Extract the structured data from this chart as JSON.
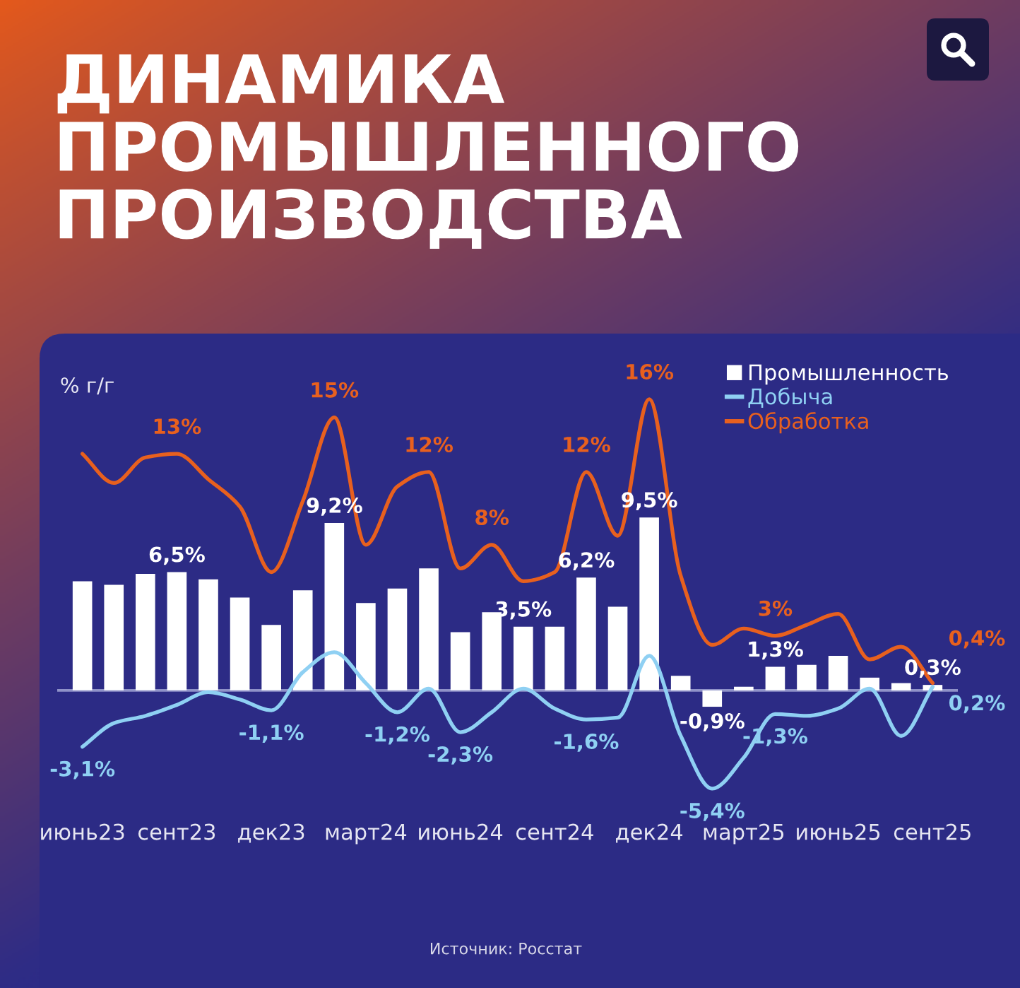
{
  "chart_data": {
    "type": "bar",
    "title": "ДИНАМИКА ПРОМЫШЛЕННОГО ПРОИЗВОДСТВА",
    "ylabel": "% г/г",
    "categories": [
      "июнь23",
      null,
      null,
      "сент23",
      null,
      null,
      "дек23",
      null,
      null,
      "март24",
      null,
      null,
      "июнь24",
      null,
      null,
      "сент24",
      null,
      null,
      "дек24",
      null,
      null,
      "март25",
      null,
      null,
      "июнь25",
      null,
      null,
      "сент25"
    ],
    "series": [
      {
        "name": "Промышленность",
        "color": "#ffffff",
        "values": [
          6.0,
          5.8,
          6.4,
          6.5,
          6.1,
          5.1,
          3.6,
          5.5,
          9.2,
          4.8,
          5.6,
          6.7,
          3.2,
          4.3,
          3.5,
          3.5,
          6.2,
          4.6,
          9.5,
          0.8,
          -0.9,
          0.2,
          1.3,
          1.4,
          1.9,
          0.7,
          0.4,
          0.3
        ],
        "value_labels": [
          null,
          null,
          null,
          "6,5%",
          null,
          null,
          null,
          null,
          "9,2%",
          null,
          null,
          null,
          null,
          null,
          "3,5%",
          null,
          "6,2%",
          null,
          "9,5%",
          null,
          "-0,9%",
          null,
          "1,3%",
          null,
          null,
          null,
          null,
          "0,3%"
        ]
      },
      {
        "name": "Добыча",
        "type": "line",
        "color": "#8fd0f3",
        "values": [
          -3.1,
          -1.8,
          -1.4,
          -0.8,
          -0.1,
          -0.5,
          -1.1,
          1.0,
          2.1,
          0.4,
          -1.2,
          0.1,
          -2.3,
          -1.2,
          0.1,
          -1.0,
          -1.6,
          -1.5,
          1.9,
          -2.5,
          -5.4,
          -3.7,
          -1.3,
          -1.4,
          -1.0,
          0.1,
          -2.5,
          0.2
        ],
        "value_labels": [
          "-3,1%",
          null,
          null,
          null,
          null,
          null,
          "-1,1%",
          null,
          null,
          null,
          "-1,2%",
          null,
          "-2,3%",
          null,
          null,
          null,
          "-1,6%",
          null,
          null,
          null,
          "-5,4%",
          null,
          "-1,3%",
          null,
          null,
          null,
          null,
          "0,2%"
        ]
      },
      {
        "name": "Обработка",
        "type": "line",
        "color": "#e8601e",
        "values": [
          13.0,
          11.4,
          12.8,
          13,
          11.6,
          10.1,
          6.5,
          10.4,
          15,
          8.0,
          11.2,
          12,
          6.7,
          8,
          6.0,
          6.5,
          12,
          8.5,
          16,
          6.3,
          2.5,
          3.4,
          3,
          3.6,
          4.2,
          1.7,
          2.4,
          0.4
        ],
        "value_labels": [
          null,
          null,
          null,
          "13%",
          null,
          null,
          null,
          null,
          "15%",
          null,
          null,
          "12%",
          null,
          "8%",
          null,
          null,
          "12%",
          null,
          "16%",
          null,
          null,
          null,
          "3%",
          null,
          null,
          null,
          null,
          "0,4%"
        ]
      }
    ],
    "tick_labels": "x",
    "legend": "top right",
    "ref_lines": [
      {
        "axis": "y",
        "value": 0,
        "color": "#8f92c8"
      }
    ],
    "annotations": [
      "Источник: Росстат"
    ]
  }
}
